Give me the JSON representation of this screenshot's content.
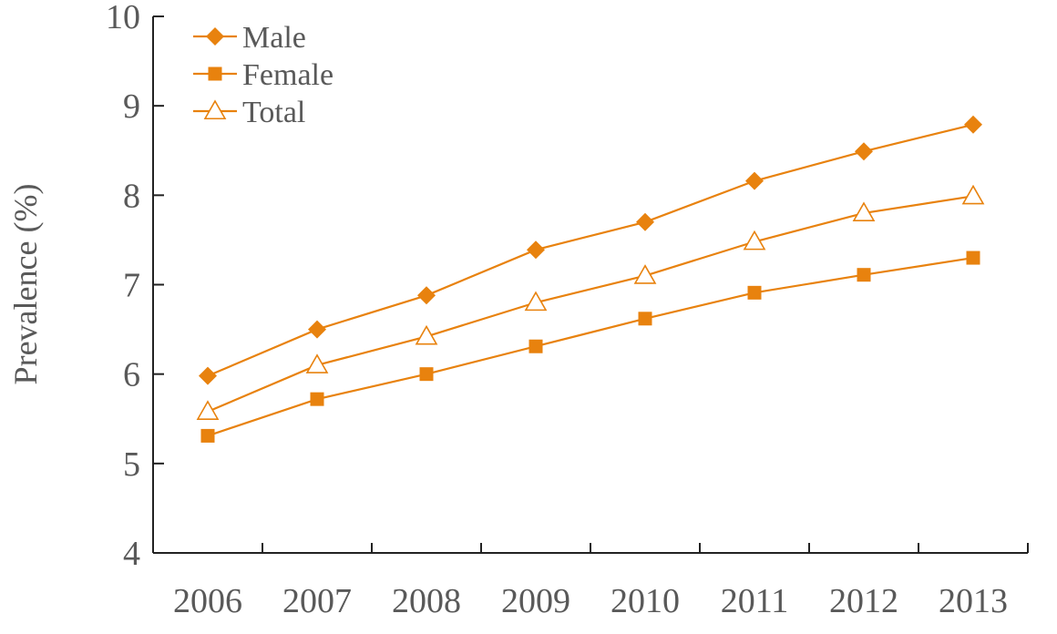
{
  "chart_data": {
    "type": "line",
    "title": "",
    "xlabel": "",
    "ylabel": "Prevalence (%)",
    "categories": [
      "2006",
      "2007",
      "2008",
      "2009",
      "2010",
      "2011",
      "2012",
      "2013"
    ],
    "ylim": [
      4,
      10
    ],
    "yticks": [
      "4",
      "5",
      "6",
      "7",
      "8",
      "9",
      "10"
    ],
    "grid": false,
    "legend_position": "top-left",
    "series": [
      {
        "name": "Male",
        "marker": "diamond",
        "color": "#E8820E",
        "values": [
          5.98,
          6.5,
          6.88,
          7.39,
          7.7,
          8.16,
          8.49,
          8.79
        ]
      },
      {
        "name": "Female",
        "marker": "square",
        "color": "#E8820E",
        "values": [
          5.31,
          5.72,
          6.0,
          6.31,
          6.62,
          6.91,
          7.11,
          7.3
        ]
      },
      {
        "name": "Total",
        "marker": "triangle-open",
        "color": "#E8820E",
        "values": [
          5.58,
          6.1,
          6.42,
          6.8,
          7.1,
          7.48,
          7.8,
          7.99
        ]
      }
    ]
  }
}
